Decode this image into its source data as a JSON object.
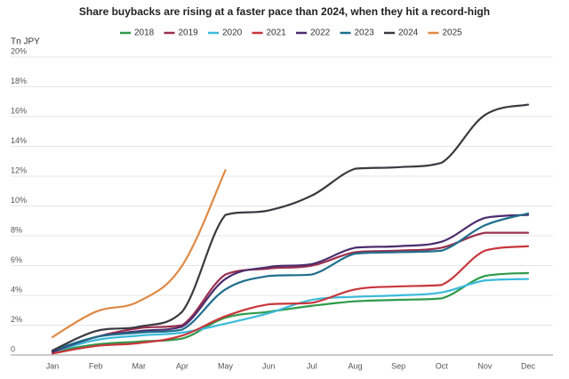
{
  "chart_data": {
    "type": "line",
    "title": "Share buybacks are rising at a faster pace than 2024, when they hit a record-high",
    "y_label": "Tn JPY",
    "categories": [
      "Jan",
      "Feb",
      "Mar",
      "Apr",
      "May",
      "Jun",
      "Jul",
      "Aug",
      "Sep",
      "Oct",
      "Nov",
      "Dec"
    ],
    "series": [
      {
        "name": "2018",
        "color": "#2e9a4a",
        "values": [
          0.2,
          0.7,
          0.9,
          1.1,
          2.5,
          2.9,
          3.3,
          3.6,
          3.7,
          3.8,
          5.3,
          5.5
        ]
      },
      {
        "name": "2019",
        "color": "#9b2f4e",
        "values": [
          0.2,
          1.2,
          1.8,
          2.0,
          5.4,
          5.8,
          6.0,
          6.9,
          7.0,
          7.2,
          8.2,
          8.2
        ]
      },
      {
        "name": "2020",
        "color": "#3bbbdc",
        "values": [
          0.2,
          1.0,
          1.3,
          1.5,
          2.1,
          2.8,
          3.7,
          3.9,
          4.0,
          4.2,
          5.0,
          5.1
        ]
      },
      {
        "name": "2021",
        "color": "#c8363b",
        "values": [
          0.1,
          0.6,
          0.8,
          1.3,
          2.6,
          3.4,
          3.5,
          4.4,
          4.6,
          4.7,
          7.0,
          7.3
        ]
      },
      {
        "name": "2022",
        "color": "#4b2d6e",
        "values": [
          0.2,
          1.2,
          1.6,
          1.9,
          5.1,
          5.9,
          6.1,
          7.2,
          7.3,
          7.6,
          9.2,
          9.4
        ]
      },
      {
        "name": "2023",
        "color": "#1e6f8c",
        "values": [
          0.3,
          1.2,
          1.5,
          1.7,
          4.4,
          5.3,
          5.4,
          6.8,
          6.9,
          7.0,
          8.7,
          9.5
        ]
      },
      {
        "name": "2024",
        "color": "#3a3a40",
        "values": [
          0.3,
          1.6,
          1.9,
          2.9,
          9.4,
          9.7,
          10.7,
          12.5,
          12.6,
          12.9,
          16.1,
          16.8
        ]
      },
      {
        "name": "2025",
        "color": "#df8a45",
        "values": [
          1.2,
          2.9,
          3.6,
          6.0,
          12.4,
          null,
          null,
          null,
          null,
          null,
          null,
          null
        ]
      }
    ],
    "ylim": [
      0,
      20
    ],
    "yticks": [
      0,
      {
        "value": 2,
        "label": "2%"
      },
      {
        "value": 4,
        "label": "4%"
      },
      {
        "value": 6,
        "label": "6%"
      },
      {
        "value": 8,
        "label": "8%"
      },
      {
        "value": 10,
        "label": "10%"
      },
      {
        "value": 12,
        "label": "12%"
      },
      {
        "value": 14,
        "label": "14%"
      },
      {
        "value": 16,
        "label": "16%"
      },
      {
        "value": 18,
        "label": "18%"
      },
      {
        "value": 20,
        "label": "20%"
      }
    ],
    "grid": true
  }
}
